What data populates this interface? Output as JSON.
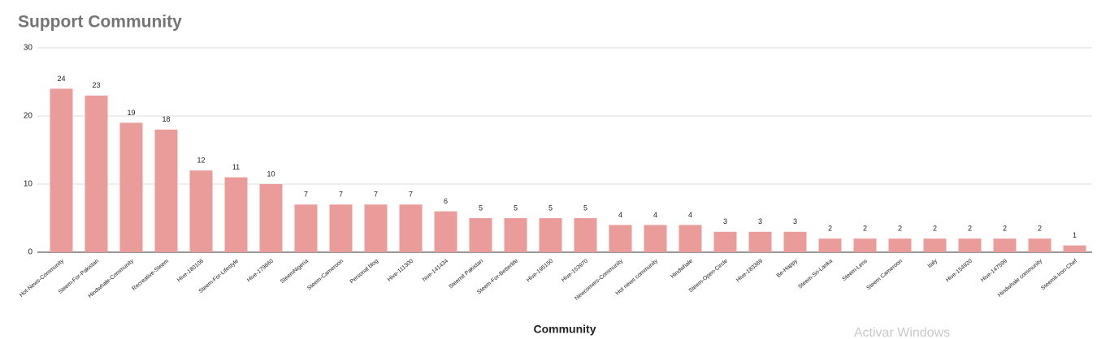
{
  "chart_data": {
    "type": "bar",
    "title": "Support Community",
    "x_label": "Community",
    "categories": [
      "Hot-News-Community",
      "Steem-For-Pakistan",
      "Hindwhale-Community",
      "Recreative-Steem",
      "Hive-180106",
      "Steem-For-Lifestyle",
      "Hive-179660",
      "SteemNigeria",
      "Steem-Cameroon",
      "Personal blog",
      "Hive-111300",
      "hive-141434",
      "Steemit Pakistan",
      "Steem-For-Betterlife",
      "Hive-195150",
      "Hive-153970",
      "Newcomers-Community",
      "Hot news community",
      "Hindwhale",
      "Steem-Open-Circle",
      "Hive-183369",
      "Be-Happy",
      "Steem-Sri-Lanka",
      "Steem-Lens",
      "Steem Cameroon",
      "Italy",
      "Hive-154920",
      "Hive-147599",
      "Hindwhale community",
      "Steemit-Iron-Chef"
    ],
    "values": [
      24,
      23,
      19,
      18,
      12,
      11,
      10,
      7,
      7,
      7,
      7,
      6,
      5,
      5,
      5,
      5,
      4,
      4,
      4,
      3,
      3,
      3,
      2,
      2,
      2,
      2,
      2,
      2,
      2,
      1
    ],
    "color": "#ea9c9b",
    "ylim": [
      0,
      30
    ],
    "yticks": [
      0,
      10,
      20,
      30
    ],
    "grid": true
  },
  "watermark": "Activar Windows"
}
